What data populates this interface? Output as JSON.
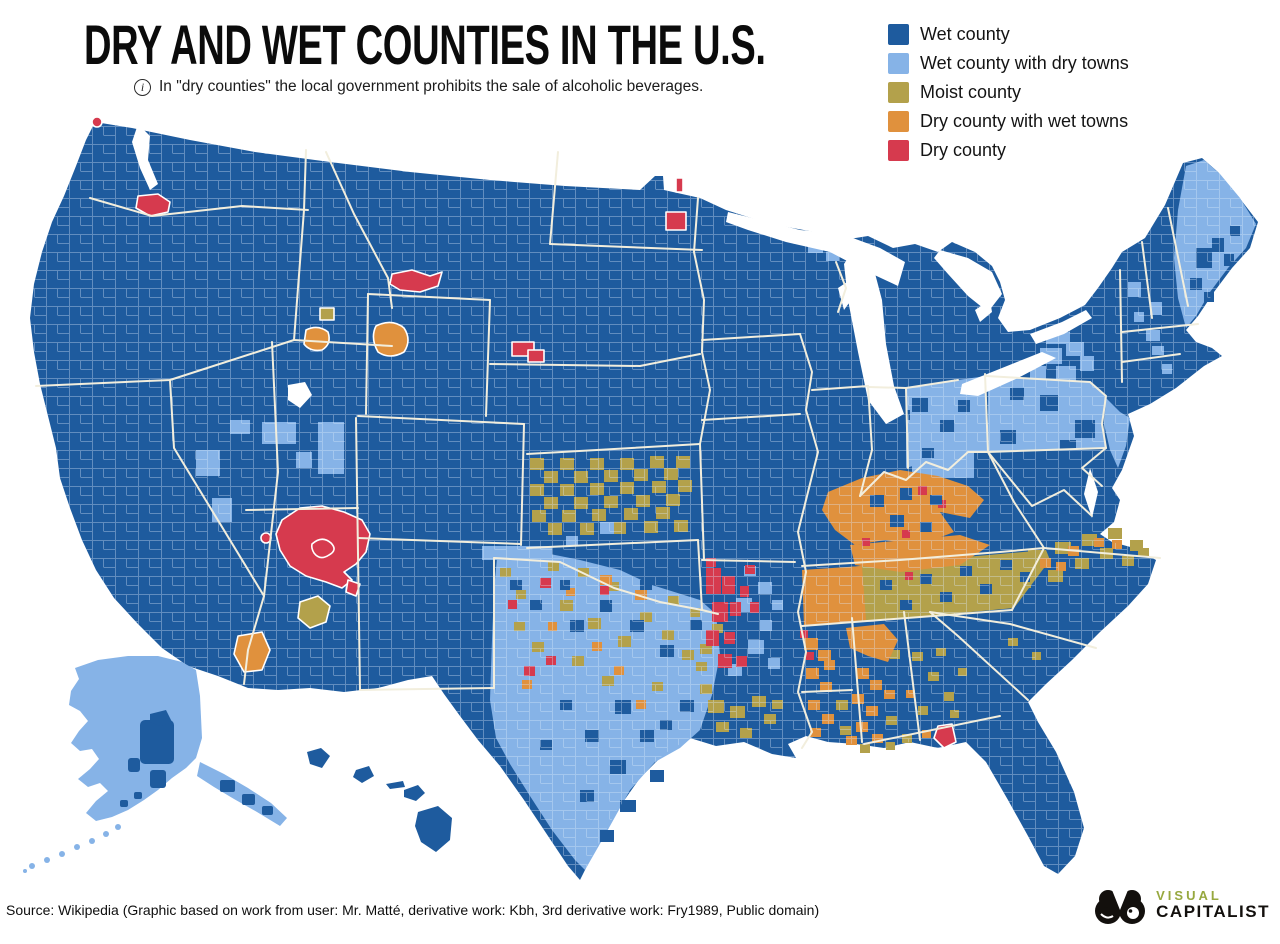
{
  "header": {
    "title": "DRY AND WET COUNTIES IN THE U.S.",
    "info_icon": "i",
    "subtitle": "In \"dry counties\" the local government prohibits the sale of alcoholic beverages."
  },
  "legend": {
    "items": [
      {
        "key": "wet",
        "label": "Wet county",
        "color": "#1e5b9e"
      },
      {
        "key": "wet_dry_towns",
        "label": "Wet county with dry towns",
        "color": "#86b3e7"
      },
      {
        "key": "moist",
        "label": "Moist county",
        "color": "#b3a14b"
      },
      {
        "key": "dry_wet_towns",
        "label": "Dry county with wet towns",
        "color": "#e0913d"
      },
      {
        "key": "dry",
        "label": "Dry county",
        "color": "#d63a4e"
      }
    ]
  },
  "map": {
    "type": "choropleth",
    "unit": "county",
    "regions_shown": [
      "Contiguous United States",
      "Alaska",
      "Hawaii"
    ],
    "colors": {
      "wet": "#1e5b9e",
      "wet_dry_towns": "#86b3e7",
      "moist": "#b3a14b",
      "dry_wet_towns": "#e0913d",
      "dry": "#d63a4e",
      "state_line": "#f2eedd",
      "water": "#ffffff"
    },
    "notable_patterns": [
      "Most counties nationwide are wet (dark blue)",
      "Alaska, Texas, Oklahoma, Ohio, Pennsylvania, New Jersey and Maine show many wet counties with dry towns (light blue)",
      "Kansas, Tennessee and North Carolina contain clusters of moist counties (olive)",
      "Kentucky, western Tennessee, Alabama and Mississippi contain dry counties with wet towns (orange)",
      "Arkansas and the Navajo Nation area contain clusters of fully dry counties (red)"
    ]
  },
  "footer": {
    "source": "Source: Wikipedia (Graphic based on work from user: Mr. Matté, derivative work: Kbh, 3rd derivative work: Fry1989, Public domain)",
    "logo": {
      "line1": "VISUAL",
      "line2": "CAPITALIST",
      "accent_color": "#97a83f",
      "mark_color": "#13100d"
    }
  }
}
